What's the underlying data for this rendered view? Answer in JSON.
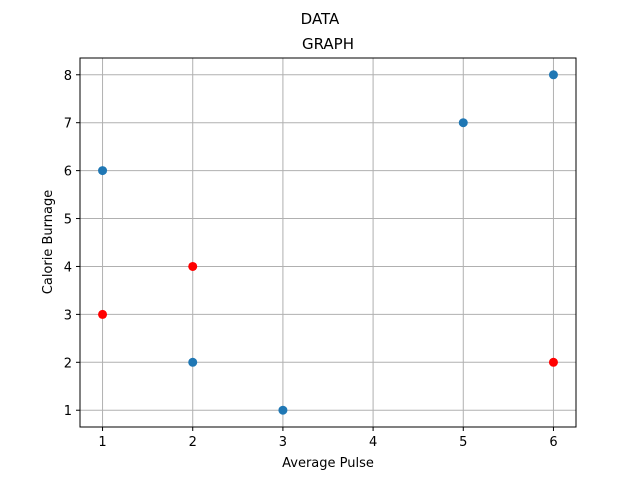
{
  "figure": {
    "suptitle": "DATA"
  },
  "chart_data": {
    "type": "scatter",
    "title": "GRAPH",
    "xlabel": "Average Pulse",
    "ylabel": "Calorie Burnage",
    "xlim": [
      0.75,
      6.25
    ],
    "ylim": [
      0.65,
      8.35
    ],
    "xticks": [
      1,
      2,
      3,
      4,
      5,
      6
    ],
    "yticks": [
      1,
      2,
      3,
      4,
      5,
      6,
      7,
      8
    ],
    "grid": true,
    "series": [
      {
        "color": "#1f77b4",
        "x": [
          1,
          2,
          3,
          5,
          6
        ],
        "y": [
          6,
          2,
          1,
          7,
          8
        ]
      },
      {
        "color": "#ff0000",
        "x": [
          1,
          2,
          6
        ],
        "y": [
          3,
          4,
          2
        ]
      }
    ]
  }
}
